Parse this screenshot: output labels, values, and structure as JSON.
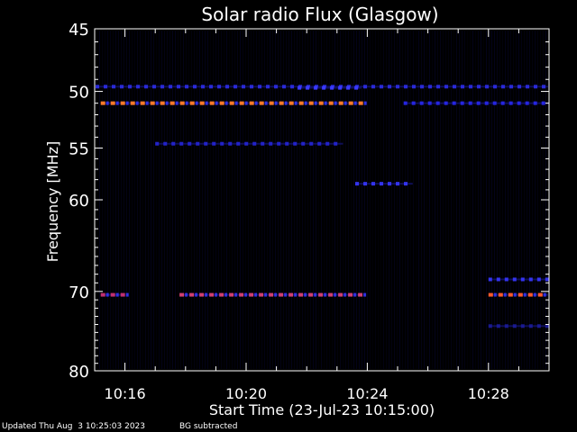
{
  "chart_data": {
    "type": "heatmap",
    "title": "Solar radio Flux (Glasgow)",
    "xlabel": "Start Time (23-Jul-23 10:15:00)",
    "ylabel": "Frequency [MHz]",
    "xlim_minutes": [
      15.0,
      30.0
    ],
    "ylim_mhz": [
      45,
      80
    ],
    "y_scale": "log",
    "y_ticks": [
      45,
      50,
      55,
      60,
      70,
      80
    ],
    "x_ticks": [
      {
        "minute": 16,
        "label": "10:16"
      },
      {
        "minute": 20,
        "label": "10:20"
      },
      {
        "minute": 24,
        "label": "10:24"
      },
      {
        "minute": 28,
        "label": "10:28"
      }
    ],
    "grid": false,
    "bands": [
      {
        "freq": 49.6,
        "t_start": 15.0,
        "t_end": 30.0,
        "intensity": "low",
        "color": "#2a2ad8"
      },
      {
        "freq": 49.7,
        "t_start": 21.7,
        "t_end": 23.8,
        "intensity": "low",
        "color": "#3a3aff"
      },
      {
        "freq": 51.0,
        "t_start": 15.2,
        "t_end": 23.8,
        "intensity": "high",
        "color": "#ff7a2a"
      },
      {
        "freq": 51.0,
        "t_start": 25.2,
        "t_end": 30.0,
        "intensity": "low",
        "color": "#2525e0"
      },
      {
        "freq": 54.6,
        "t_start": 17.0,
        "t_end": 23.2,
        "intensity": "low",
        "color": "#2222c8"
      },
      {
        "freq": 58.4,
        "t_start": 23.6,
        "t_end": 25.5,
        "intensity": "low",
        "color": "#3333ee"
      },
      {
        "freq": 68.6,
        "t_start": 28.0,
        "t_end": 30.0,
        "intensity": "low",
        "color": "#3333ee"
      },
      {
        "freq": 70.4,
        "t_start": 15.2,
        "t_end": 16.0,
        "intensity": "mid",
        "color": "#c03070"
      },
      {
        "freq": 70.4,
        "t_start": 17.8,
        "t_end": 23.8,
        "intensity": "mid",
        "color": "#d04070"
      },
      {
        "freq": 70.4,
        "t_start": 28.0,
        "t_end": 30.0,
        "intensity": "high",
        "color": "#ff5a2a"
      },
      {
        "freq": 74.2,
        "t_start": 28.0,
        "t_end": 30.0,
        "intensity": "low",
        "color": "#1a1a90"
      }
    ]
  },
  "footer": {
    "updated": "Updated Thu Aug  3 10:25:03 2023",
    "bg_note": "BG subtracted"
  }
}
